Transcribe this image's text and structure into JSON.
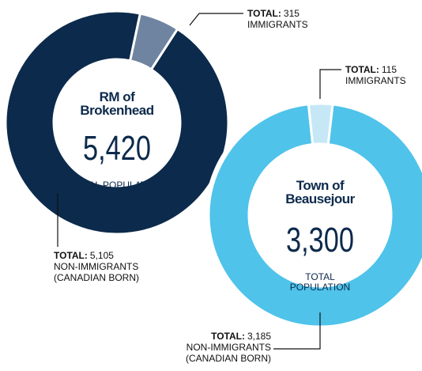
{
  "chart_data": [
    {
      "type": "pie",
      "title": "RM of\nBrokenhead",
      "total": {
        "value": 5420,
        "label": "5,420"
      },
      "total_caption": "TOTAL POPULATION",
      "value_prefix": "TOTAL:",
      "categories": [
        "IMMIGRANTS",
        "NON-IMMIGRANTS\n(CANADIAN BORN)"
      ],
      "values": [
        315,
        5105
      ],
      "value_labels": [
        "315",
        "5,105"
      ],
      "colors": [
        "#6f84a0",
        "#0c2a4b"
      ]
    },
    {
      "type": "pie",
      "title": "Town of\nBeausejour",
      "total": {
        "value": 3300,
        "label": "3,300"
      },
      "total_caption": "TOTAL\nPOPULATION",
      "value_prefix": "TOTAL:",
      "categories": [
        "IMMIGRANTS",
        "NON-IMMIGRANTS\n(CANADIAN BORN)"
      ],
      "values": [
        115,
        3185
      ],
      "value_labels": [
        "115",
        "3,185"
      ],
      "colors": [
        "#c6e8f6",
        "#4fc3ea"
      ]
    }
  ]
}
